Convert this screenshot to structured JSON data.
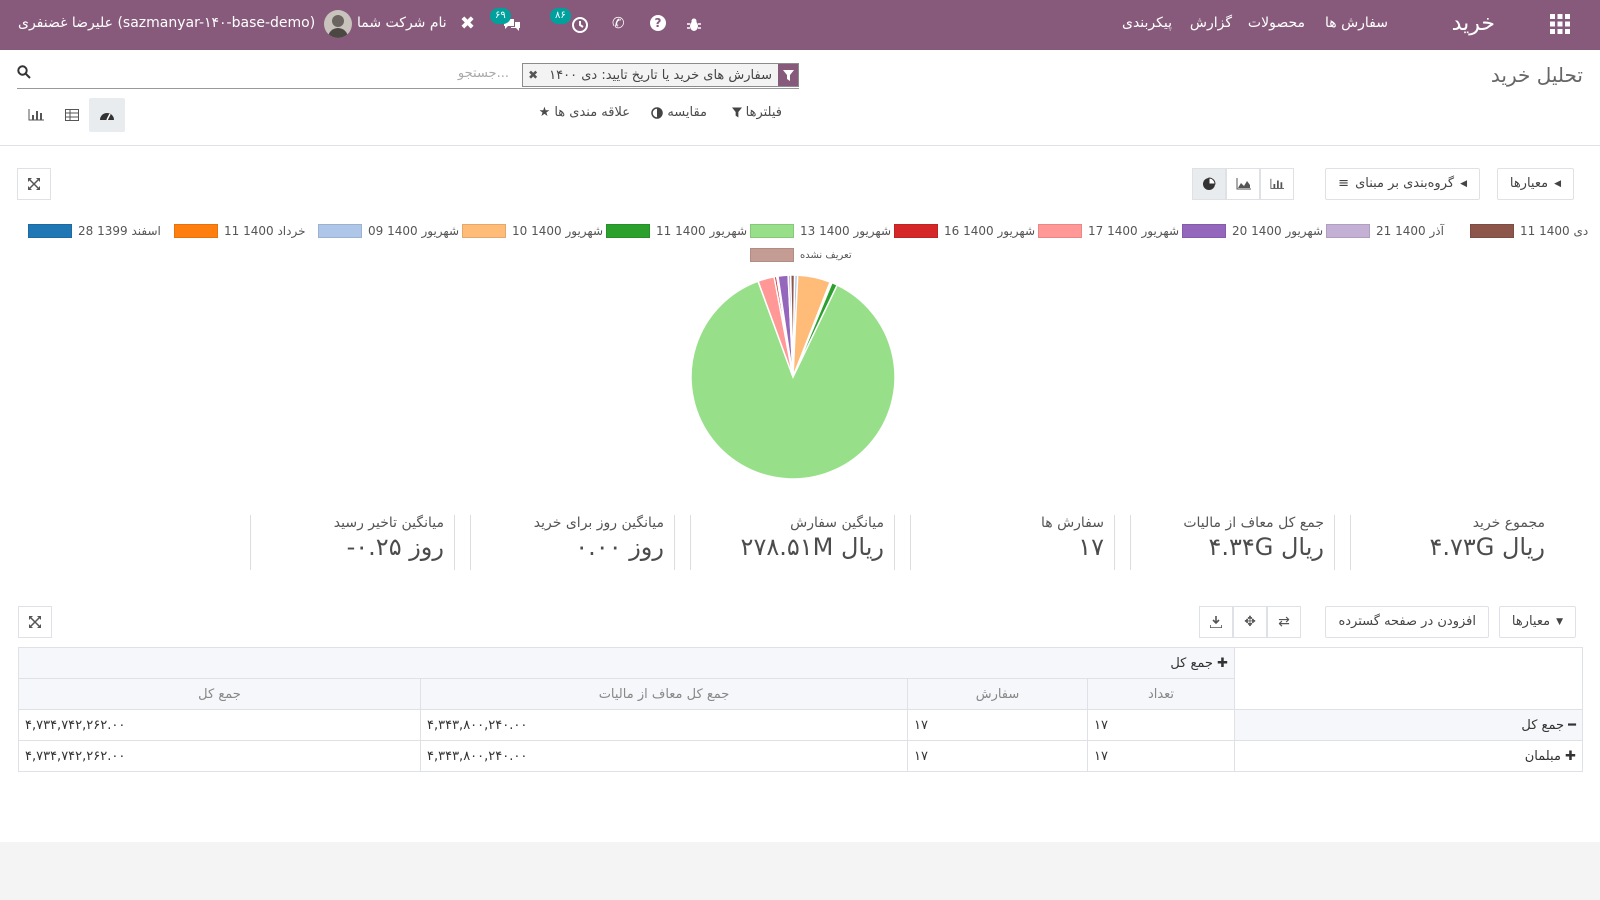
{
  "navbar": {
    "app_title": "خرید",
    "menu": [
      "سفارش ها",
      "محصولات",
      "گزارش",
      "پیکربندی"
    ],
    "company": "نام شرکت شما",
    "user": "علیرضا غضنفری (sazmanyar-۱۴۰-base-demo)",
    "messages_badge": "۶۹",
    "activity_badge": "۸۶",
    "icons": [
      "apps-icon",
      "bug-icon",
      "help-icon",
      "phone-icon",
      "clock-icon",
      "chat-icon",
      "tools-icon",
      "avatar"
    ]
  },
  "control_panel": {
    "title": "تحلیل خرید",
    "search_facet": "سفارش های خرید یا تاریخ تایید: دی ۱۴۰۰",
    "search_placeholder": "جستجو...",
    "filters_label": "فیلترها",
    "compare_label": "مقایسه",
    "favorites_label": "علاقه مندی ها"
  },
  "graph": {
    "measures_label": "معیارها",
    "groupby_label": "گروه‌بندی بر مبنای",
    "legend": [
      {
        "label": "11 دی 1400",
        "color": "#8c564b"
      },
      {
        "label": "21 آذر 1400",
        "color": "#c5b0d5"
      },
      {
        "label": "20 شهریور 1400",
        "color": "#9467bd"
      },
      {
        "label": "17 شهریور 1400",
        "color": "#ff9896"
      },
      {
        "label": "16 شهریور 1400",
        "color": "#d62728"
      },
      {
        "label": "13 شهریور 1400",
        "color": "#98df8a"
      },
      {
        "label": "11 شهریور 1400",
        "color": "#2ca02c"
      },
      {
        "label": "10 شهریور 1400",
        "color": "#ffbb78"
      },
      {
        "label": "09 شهریور 1400",
        "color": "#aec7e8"
      },
      {
        "label": "11 خرداد 1400",
        "color": "#ff7f0e"
      },
      {
        "label": "28 اسفند 1399",
        "color": "#1f77b4"
      },
      {
        "label": "تعریف نشده",
        "color": "#c49c94"
      }
    ]
  },
  "chart_data": {
    "type": "pie",
    "labels": [
      "11 دی 1400",
      "21 آذر 1400",
      "20 شهریور 1400",
      "17 شهریور 1400",
      "16 شهریور 1400",
      "13 شهریور 1400",
      "11 شهریور 1400",
      "10 شهریور 1400",
      "09 شهریور 1400",
      "11 خرداد 1400",
      "28 اسفند 1399",
      "تعریف نشده"
    ],
    "values": [
      0.6,
      0.4,
      1.6,
      2.6,
      0.4,
      87.3,
      0.9,
      5.2,
      0.5,
      0.2,
      0.1,
      0.2
    ],
    "colors": [
      "#8c564b",
      "#c5b0d5",
      "#9467bd",
      "#ff9896",
      "#d62728",
      "#98df8a",
      "#2ca02c",
      "#ffbb78",
      "#aec7e8",
      "#ff7f0e",
      "#1f77b4",
      "#c49c94"
    ],
    "legend_position": "top"
  },
  "kpis": [
    {
      "label": "مجموع خرید",
      "value": "۴.۷۳G ریال"
    },
    {
      "label": "جمع کل معاف از مالیات",
      "value": "۴.۳۴G ریال"
    },
    {
      "label": "سفارش ها",
      "value": "۱۷"
    },
    {
      "label": "میانگین سفارش",
      "value": "۲۷۸.۵۱M ریال"
    },
    {
      "label": "میانگین روز برای خرید",
      "value": "۰.۰۰ روز"
    },
    {
      "label": "میانگین تاخیر رسید",
      "value": "-۰.۲۵ روز"
    }
  ],
  "pivot": {
    "measures_label": "معیارها",
    "insert_sheet_label": "افزودن در صفحه گسترده",
    "col_header": "جمع کل",
    "measures": [
      "تعداد",
      "سفارش",
      "جمع کل معاف از مالیات",
      "جمع کل"
    ],
    "rows": [
      {
        "label": "جمع کل",
        "values": [
          "۱۷",
          "۱۷",
          "۴,۳۴۳,۸۰۰,۲۴۰.۰۰",
          "۴,۷۳۴,۷۴۲,۲۶۲.۰۰"
        ]
      },
      {
        "label": "مبلمان",
        "values": [
          "۱۷",
          "۱۷",
          "۴,۳۴۳,۸۰۰,۲۴۰.۰۰",
          "۴,۷۳۴,۷۴۲,۲۶۲.۰۰"
        ]
      }
    ]
  }
}
